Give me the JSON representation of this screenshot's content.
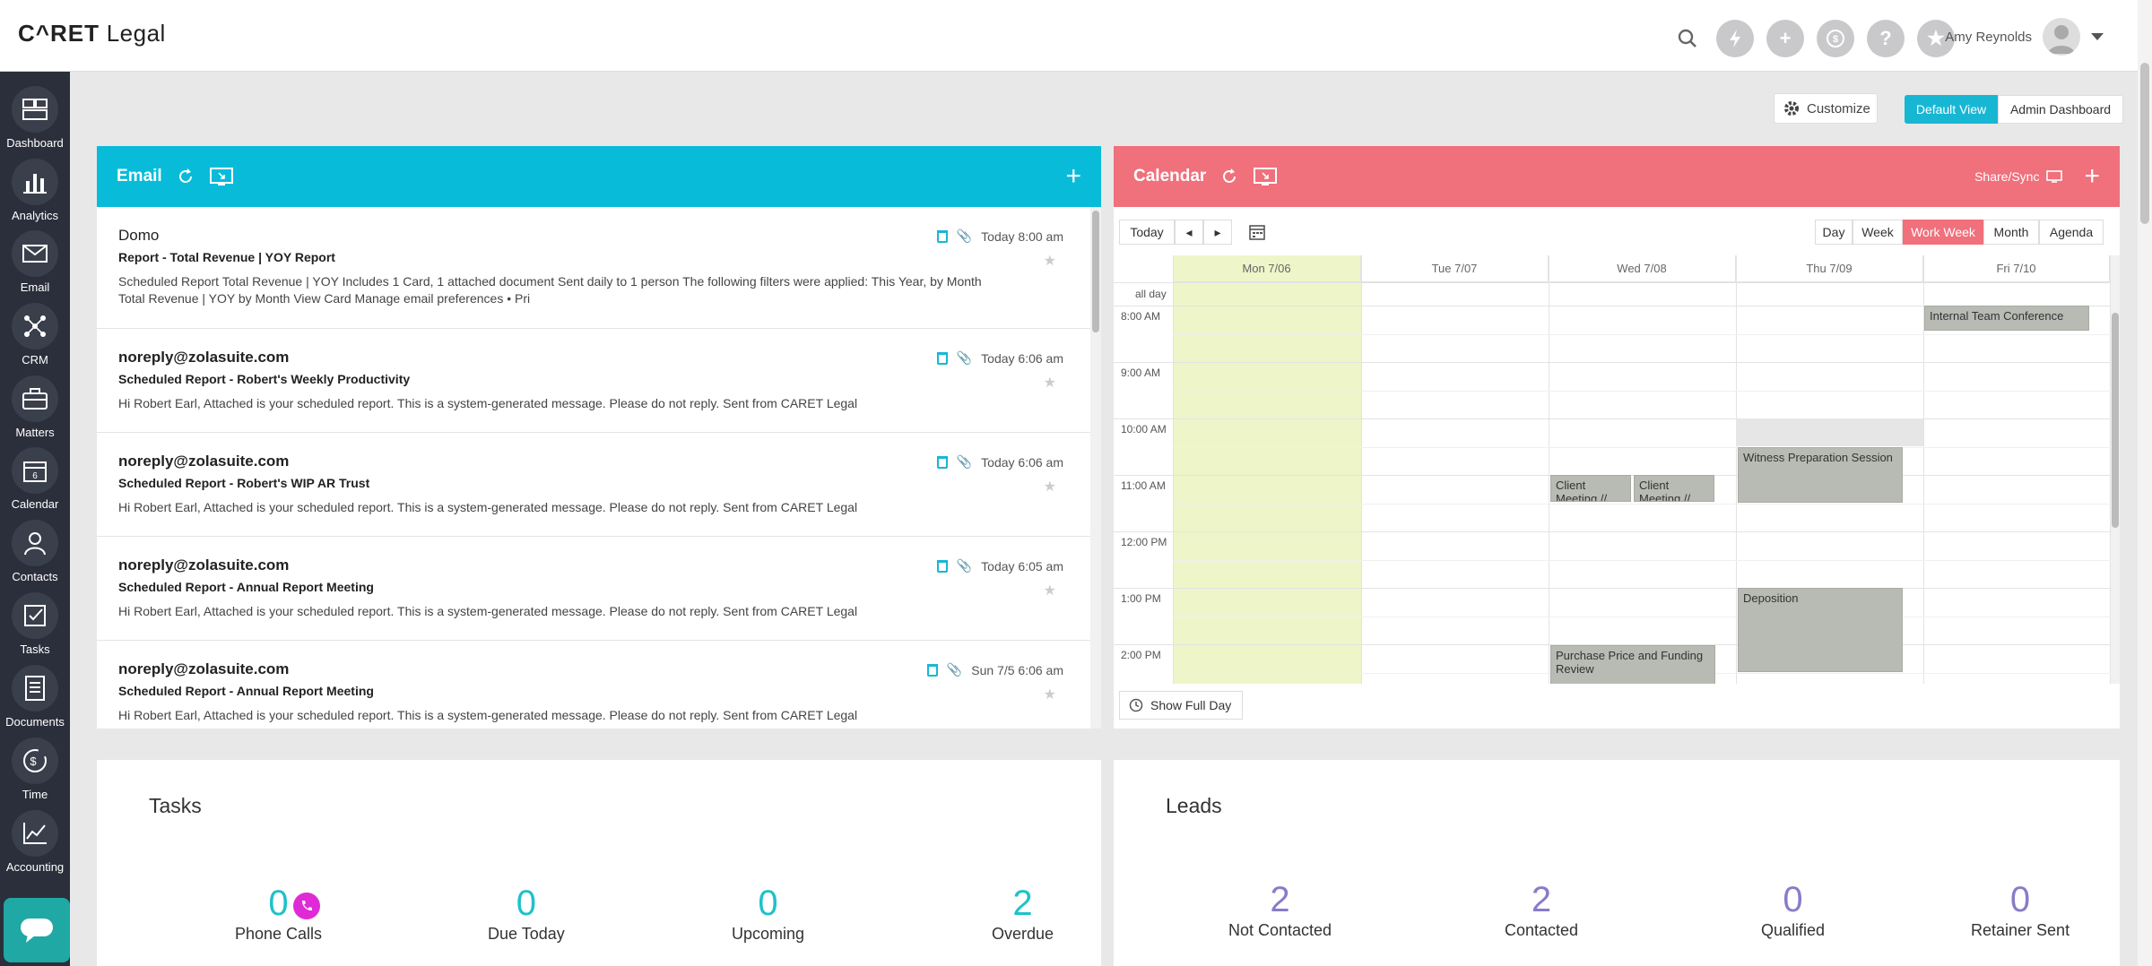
{
  "app": {
    "logo_caret": "C^RET",
    "logo_legal": "Legal",
    "user_name": "Amy Reynolds"
  },
  "sidebar": {
    "items": [
      {
        "label": "Dashboard",
        "icon": "dashboard-icon"
      },
      {
        "label": "Analytics",
        "icon": "analytics-icon"
      },
      {
        "label": "Email",
        "icon": "email-icon"
      },
      {
        "label": "CRM",
        "icon": "crm-icon"
      },
      {
        "label": "Matters",
        "icon": "matters-icon"
      },
      {
        "label": "Calendar",
        "icon": "calendar-icon"
      },
      {
        "label": "Contacts",
        "icon": "contacts-icon"
      },
      {
        "label": "Tasks",
        "icon": "tasks-icon"
      },
      {
        "label": "Documents",
        "icon": "documents-icon"
      },
      {
        "label": "Time",
        "icon": "time-icon"
      },
      {
        "label": "Accounting",
        "icon": "accounting-icon"
      }
    ]
  },
  "toolbar": {
    "customize": "Customize",
    "default_view": "Default View",
    "admin_dashboard": "Admin Dashboard"
  },
  "email": {
    "title": "Email",
    "messages": [
      {
        "from": "Domo",
        "subject": "Report - Total Revenue | YOY Report",
        "body": "Scheduled Report Total Revenue | YOY Includes 1 Card, 1 attached document Sent daily to 1 person The following filters were applied: This Year, by Month Total Revenue | YOY by Month View Card Manage email preferences • Pri",
        "time": "Today 8:00 am"
      },
      {
        "from": "noreply@zolasuite.com",
        "subject": "Scheduled Report - Robert's Weekly Productivity",
        "body": "Hi Robert Earl, Attached is your scheduled report. This is a system-generated message. Please do not reply. Sent from CARET Legal",
        "time": "Today 6:06 am"
      },
      {
        "from": "noreply@zolasuite.com",
        "subject": "Scheduled Report - Robert's WIP AR Trust",
        "body": "Hi Robert Earl, Attached is your scheduled report. This is a system-generated message. Please do not reply. Sent from CARET Legal",
        "time": "Today 6:06 am"
      },
      {
        "from": "noreply@zolasuite.com",
        "subject": "Scheduled Report - Annual Report Meeting",
        "body": "Hi Robert Earl, Attached is your scheduled report. This is a system-generated message. Please do not reply. Sent from CARET Legal",
        "time": "Today 6:05 am"
      },
      {
        "from": "noreply@zolasuite.com",
        "subject": "Scheduled Report - Annual Report Meeting",
        "body": "Hi Robert Earl, Attached is your scheduled report. This is a system-generated message. Please do not reply. Sent from CARET Legal",
        "time": "Sun 7/5 6:06 am"
      }
    ]
  },
  "calendar": {
    "title": "Calendar",
    "share_sync": "Share/Sync",
    "today_btn": "Today",
    "views": [
      "Day",
      "Week",
      "Work Week",
      "Month",
      "Agenda"
    ],
    "active_view": "Work Week",
    "days": [
      "Mon 7/06",
      "Tue 7/07",
      "Wed 7/08",
      "Thu 7/09",
      "Fri 7/10"
    ],
    "all_day": "all day",
    "times": [
      "8:00 AM",
      "9:00 AM",
      "10:00 AM",
      "11:00 AM",
      "12:00 PM",
      "1:00 PM",
      "2:00 PM"
    ],
    "events": {
      "e1": "Internal Team Conference",
      "e2": "Witness Preparation Session",
      "e3": "Client Meeting //",
      "e4": "Client Meeting //",
      "e5": "Deposition",
      "e6": "Purchase Price and Funding Review"
    },
    "show_full_day": "Show Full Day"
  },
  "tasks": {
    "title": "Tasks",
    "stats": [
      {
        "value": "0",
        "label": "Phone Calls"
      },
      {
        "value": "0",
        "label": "Due Today"
      },
      {
        "value": "0",
        "label": "Upcoming"
      },
      {
        "value": "2",
        "label": "Overdue"
      }
    ]
  },
  "leads": {
    "title": "Leads",
    "stats": [
      {
        "value": "2",
        "label": "Not Contacted"
      },
      {
        "value": "2",
        "label": "Contacted"
      },
      {
        "value": "0",
        "label": "Qualified"
      },
      {
        "value": "0",
        "label": "Retainer Sent"
      }
    ]
  },
  "colors": {
    "email_header": "#08bcd9",
    "calendar_header": "#f0707c",
    "sidebar": "#2b2f3b",
    "teal": "#1ec2c8",
    "purple": "#8a7bc9",
    "today_column": "#eef5c9"
  }
}
